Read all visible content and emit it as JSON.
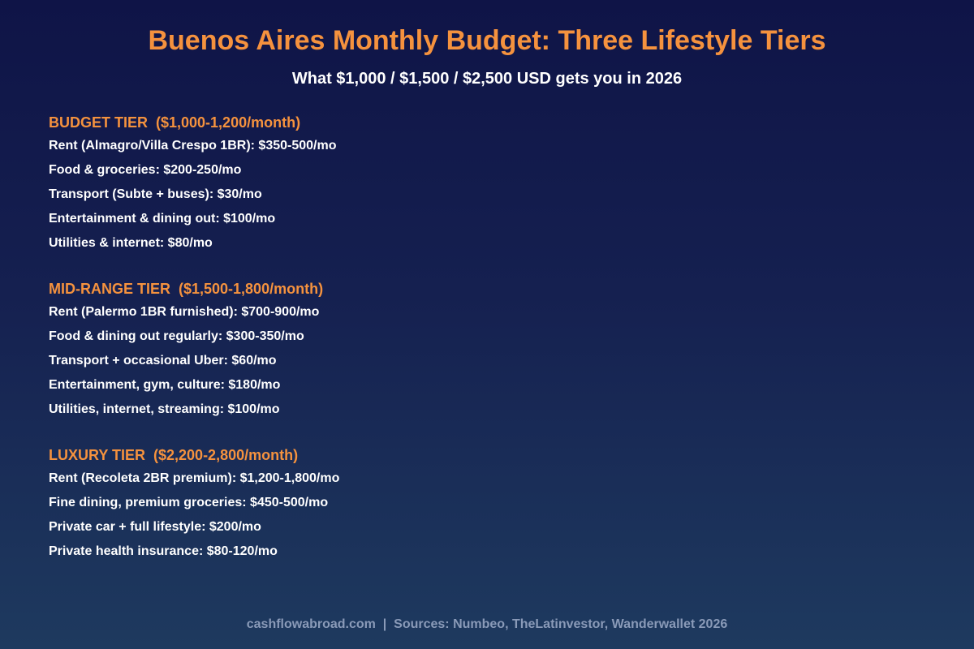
{
  "header": {
    "title": "Buenos Aires Monthly Budget: Three Lifestyle Tiers",
    "subtitle": "What $1,000 / $1,500 / $2,500 USD gets you in 2026"
  },
  "tiers": [
    {
      "heading": "BUDGET TIER  ($1,000-1,200/month)",
      "items": [
        "Rent (Almagro/Villa Crespo 1BR): $350-500/mo",
        "Food & groceries: $200-250/mo",
        "Transport (Subte + buses): $30/mo",
        "Entertainment & dining out: $100/mo",
        "Utilities & internet: $80/mo"
      ]
    },
    {
      "heading": "MID-RANGE TIER  ($1,500-1,800/month)",
      "items": [
        "Rent (Palermo 1BR furnished): $700-900/mo",
        "Food & dining out regularly: $300-350/mo",
        "Transport + occasional Uber: $60/mo",
        "Entertainment, gym, culture: $180/mo",
        "Utilities, internet, streaming: $100/mo"
      ]
    },
    {
      "heading": "LUXURY TIER  ($2,200-2,800/month)",
      "items": [
        "Rent (Recoleta 2BR premium): $1,200-1,800/mo",
        "Fine dining, premium groceries: $450-500/mo",
        "Private car + full lifestyle: $200/mo",
        "Private health insurance: $80-120/mo"
      ]
    }
  ],
  "footer": {
    "text": "cashflowabroad.com  |  Sources: Numbeo, TheLatinvestor, Wanderwallet 2026"
  },
  "colors": {
    "accent": "#f5923e",
    "text": "#ffffff",
    "footer_text": "#8a9ab8",
    "background_top": "#0f1447",
    "background_bottom": "#1e3a5f"
  }
}
